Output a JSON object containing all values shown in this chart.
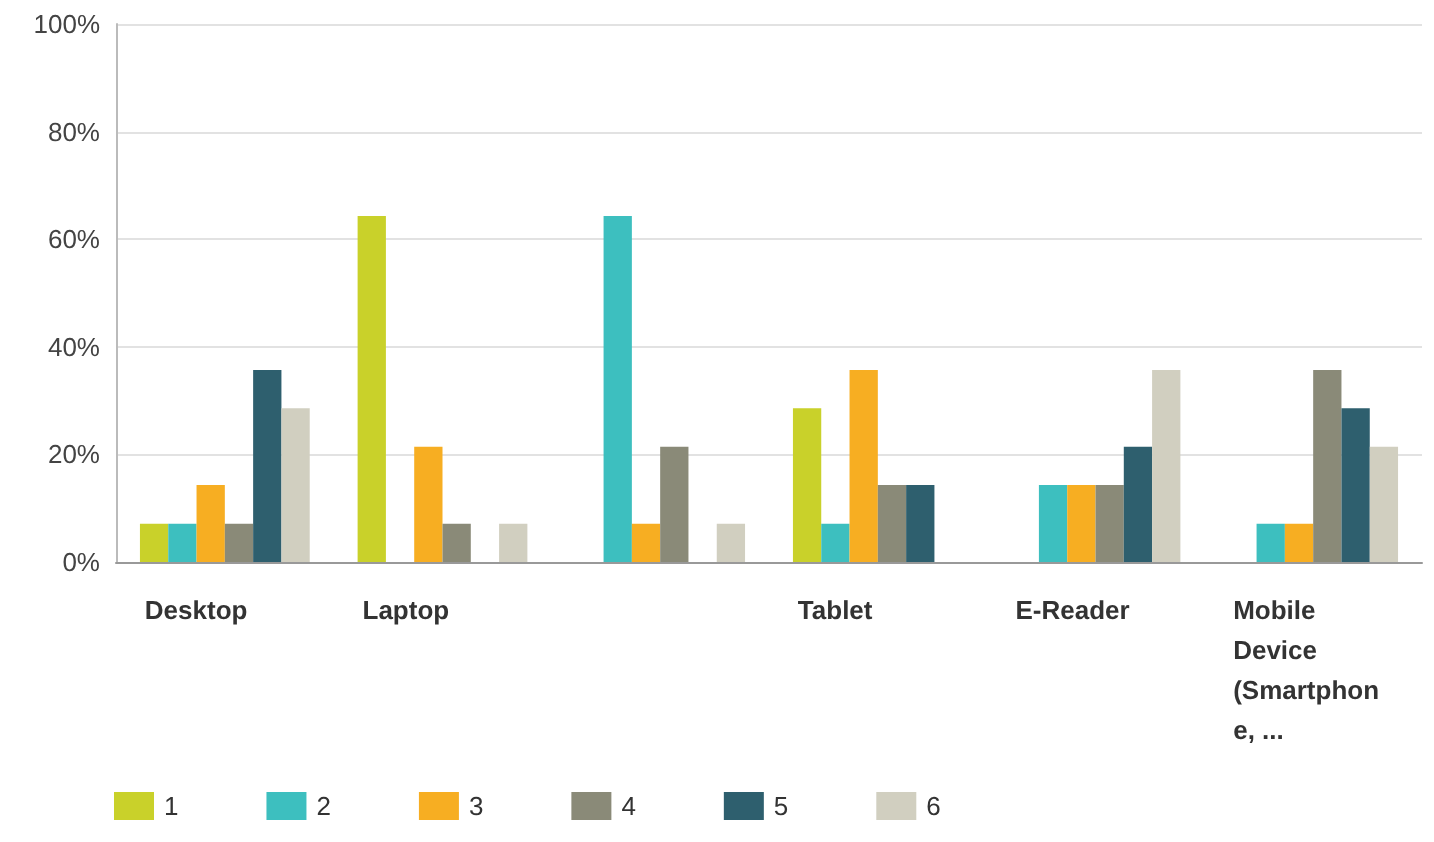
{
  "chart_data": {
    "type": "bar",
    "categories": [
      "Desktop",
      "Laptop",
      null,
      "Tablet",
      "E-Reader",
      "Mobile Device (Smartphone, ..."
    ],
    "series": [
      {
        "name": "1",
        "color": "#c9d12a",
        "values": [
          7.1,
          64.3,
          0,
          28.6,
          0,
          0
        ]
      },
      {
        "name": "2",
        "color": "#3dbfbf",
        "values": [
          7.1,
          0,
          64.3,
          7.1,
          14.3,
          7.1
        ]
      },
      {
        "name": "3",
        "color": "#f7ae22",
        "values": [
          14.3,
          21.4,
          7.1,
          35.7,
          14.3,
          7.1
        ]
      },
      {
        "name": "4",
        "color": "#8a8a78",
        "values": [
          7.1,
          7.1,
          21.4,
          14.3,
          14.3,
          35.7
        ]
      },
      {
        "name": "5",
        "color": "#2e5f6e",
        "values": [
          35.7,
          0,
          0,
          14.3,
          21.4,
          28.6
        ]
      },
      {
        "name": "6",
        "color": "#d1cfc0",
        "values": [
          28.6,
          7.1,
          7.1,
          0,
          35.7,
          21.4
        ]
      }
    ],
    "ylim": [
      0,
      100
    ],
    "yticks": [
      {
        "value": 0,
        "label": "0%"
      },
      {
        "value": 20,
        "label": "20%"
      },
      {
        "value": 40,
        "label": "40%"
      },
      {
        "value": 60,
        "label": "60%"
      },
      {
        "value": 80,
        "label": "80%"
      },
      {
        "value": 100,
        "label": "100%"
      }
    ],
    "grid": "y",
    "legend": "bottom left"
  }
}
